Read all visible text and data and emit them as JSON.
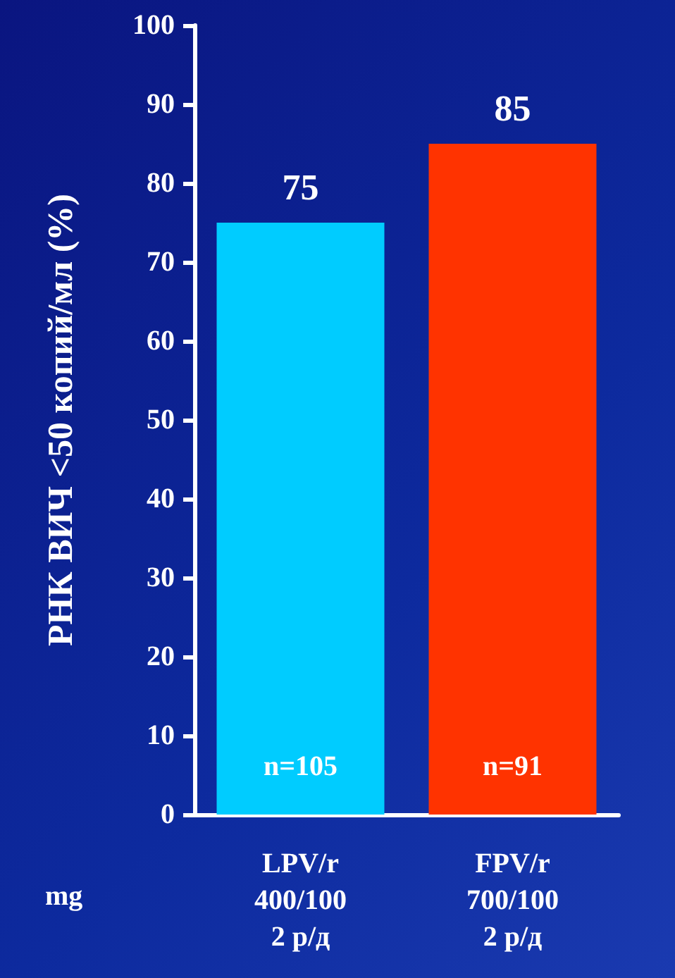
{
  "chart_data": {
    "type": "bar",
    "ylabel": "РНК ВИЧ <50 копий/мл (%)",
    "categories": [
      "LPV/r\n400/100\n2 р/д",
      "FPV/r\n700/100\n2 р/д"
    ],
    "values": [
      75,
      85
    ],
    "colors": [
      "#00ccff",
      "#ff3300"
    ],
    "ylim": [
      0,
      100
    ],
    "yticks": [
      0,
      10,
      20,
      30,
      40,
      50,
      60,
      70,
      80,
      90,
      100
    ],
    "grid": false,
    "data_labels": true,
    "annotations": [
      "n=105",
      "n=91",
      "mg"
    ]
  }
}
